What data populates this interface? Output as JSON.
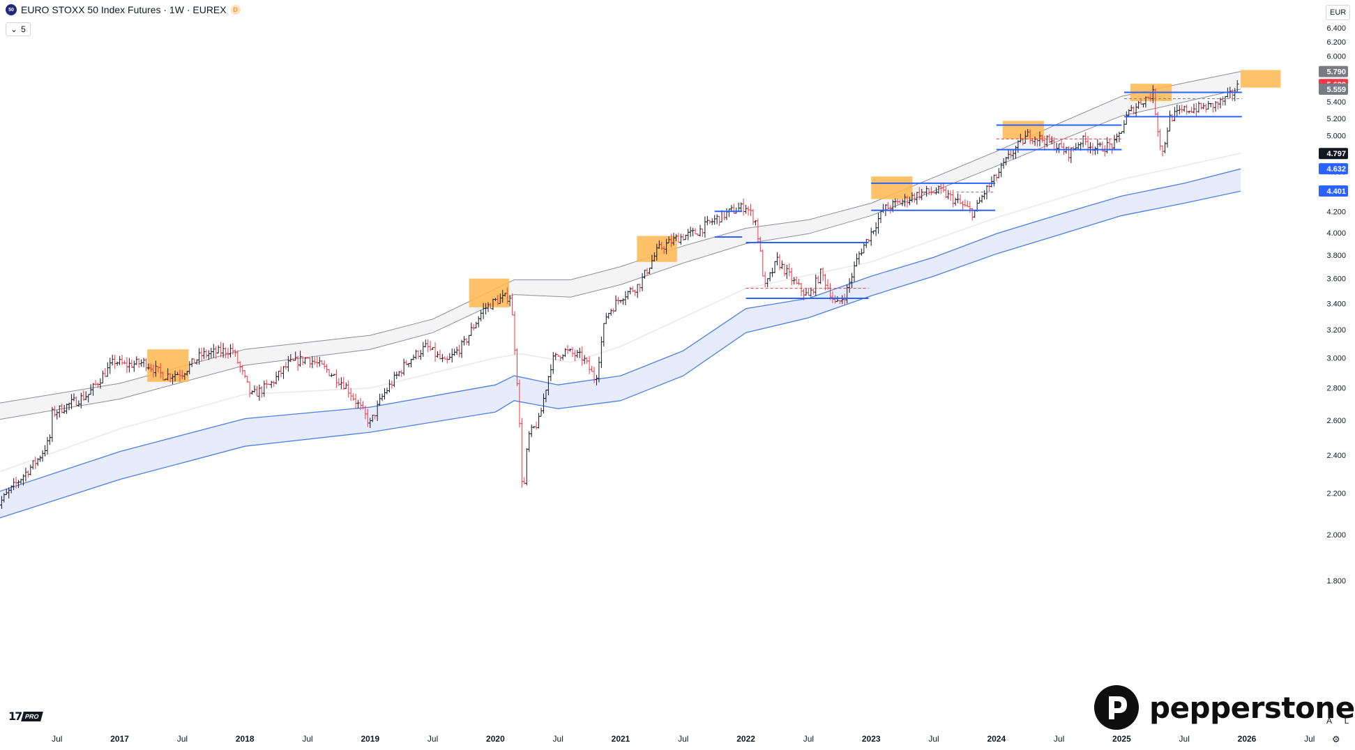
{
  "header": {
    "symbol_badge": "50",
    "title": "EURO STOXX 50 Index Futures · 1W · EUREX",
    "d_badge": "D",
    "indicator_toggle": "5",
    "currency": "EUR"
  },
  "footer": {
    "tv_logo": "17",
    "tv_logo_suffix": "PRO",
    "brand": "pepperstone",
    "scale_auto_button": "A",
    "scale_log_button": "L",
    "settings_icon": "gear-icon"
  },
  "colors": {
    "up": "#131722",
    "down": "#f23645",
    "level_line": "#2962ff",
    "highlight_box": "#ffb74d",
    "band_fill": "#dde6fb",
    "band_line": "#4a7de8"
  },
  "chart_data": {
    "type": "line",
    "title": "",
    "xlabel": "",
    "ylabel": "",
    "y_scale": "log",
    "ylim": [
      1.72,
      6.6
    ],
    "xlim": [
      2016.0,
      2026.55
    ],
    "grid": false,
    "y_ticks": [
      "6.400",
      "6.200",
      "6.000",
      "5.800",
      "5.600",
      "5.400",
      "5.200",
      "5.000",
      "4.800",
      "4.600",
      "4.400",
      "4.200",
      "4.000",
      "3.800",
      "3.600",
      "3.400",
      "3.200",
      "3.000",
      "2.800",
      "2.600",
      "2.400",
      "2.200",
      "2.000",
      "1.800"
    ],
    "x_ticks": [
      {
        "label": "Jul",
        "t": 2016.5
      },
      {
        "label": "2017",
        "t": 2017.0
      },
      {
        "label": "Jul",
        "t": 2017.5
      },
      {
        "label": "2018",
        "t": 2018.0
      },
      {
        "label": "Jul",
        "t": 2018.5
      },
      {
        "label": "2019",
        "t": 2019.0
      },
      {
        "label": "Jul",
        "t": 2019.5
      },
      {
        "label": "2020",
        "t": 2020.0
      },
      {
        "label": "Jul",
        "t": 2020.5
      },
      {
        "label": "2021",
        "t": 2021.0
      },
      {
        "label": "Jul",
        "t": 2021.5
      },
      {
        "label": "2022",
        "t": 2022.0
      },
      {
        "label": "Jul",
        "t": 2022.5
      },
      {
        "label": "2023",
        "t": 2023.0
      },
      {
        "label": "Jul",
        "t": 2023.5
      },
      {
        "label": "2024",
        "t": 2024.0
      },
      {
        "label": "Jul",
        "t": 2024.5
      },
      {
        "label": "2025",
        "t": 2025.0
      },
      {
        "label": "Jul",
        "t": 2025.5
      },
      {
        "label": "2026",
        "t": 2026.0
      },
      {
        "label": "Jul",
        "t": 2026.5
      }
    ],
    "price_path": [
      [
        2016.0,
        2.12
      ],
      [
        2016.35,
        2.38
      ],
      [
        2016.44,
        2.48
      ],
      [
        2016.46,
        2.64
      ],
      [
        2016.75,
        2.76
      ],
      [
        2016.96,
        2.98
      ],
      [
        2017.04,
        2.95
      ],
      [
        2017.2,
        2.97
      ],
      [
        2017.35,
        2.88
      ],
      [
        2017.5,
        2.9
      ],
      [
        2017.65,
        3.02
      ],
      [
        2017.9,
        3.06
      ],
      [
        2018.05,
        2.75
      ],
      [
        2018.2,
        2.82
      ],
      [
        2018.35,
        2.96
      ],
      [
        2018.5,
        3.0
      ],
      [
        2018.65,
        2.92
      ],
      [
        2018.8,
        2.82
      ],
      [
        2018.95,
        2.64
      ],
      [
        2019.0,
        2.58
      ],
      [
        2019.1,
        2.75
      ],
      [
        2019.3,
        2.98
      ],
      [
        2019.45,
        3.08
      ],
      [
        2019.6,
        2.96
      ],
      [
        2019.75,
        3.1
      ],
      [
        2019.9,
        3.35
      ],
      [
        2020.0,
        3.42
      ],
      [
        2020.12,
        3.46
      ],
      [
        2020.17,
        2.9
      ],
      [
        2020.22,
        2.15
      ],
      [
        2020.26,
        2.5
      ],
      [
        2020.35,
        2.6
      ],
      [
        2020.45,
        2.98
      ],
      [
        2020.55,
        3.05
      ],
      [
        2020.7,
        3.0
      ],
      [
        2020.8,
        2.85
      ],
      [
        2020.88,
        3.3
      ],
      [
        2021.0,
        3.45
      ],
      [
        2021.15,
        3.55
      ],
      [
        2021.3,
        3.85
      ],
      [
        2021.45,
        3.95
      ],
      [
        2021.6,
        4.0
      ],
      [
        2021.75,
        4.12
      ],
      [
        2021.88,
        4.2
      ],
      [
        2022.0,
        4.25
      ],
      [
        2022.08,
        4.1
      ],
      [
        2022.15,
        3.52
      ],
      [
        2022.25,
        3.75
      ],
      [
        2022.4,
        3.55
      ],
      [
        2022.5,
        3.45
      ],
      [
        2022.6,
        3.65
      ],
      [
        2022.72,
        3.38
      ],
      [
        2022.8,
        3.48
      ],
      [
        2022.9,
        3.8
      ],
      [
        2023.0,
        4.0
      ],
      [
        2023.1,
        4.22
      ],
      [
        2023.25,
        4.3
      ],
      [
        2023.4,
        4.38
      ],
      [
        2023.55,
        4.4
      ],
      [
        2023.68,
        4.3
      ],
      [
        2023.82,
        4.18
      ],
      [
        2023.9,
        4.38
      ],
      [
        2024.0,
        4.55
      ],
      [
        2024.12,
        4.8
      ],
      [
        2024.25,
        5.0
      ],
      [
        2024.38,
        4.95
      ],
      [
        2024.48,
        4.88
      ],
      [
        2024.58,
        4.8
      ],
      [
        2024.68,
        4.95
      ],
      [
        2024.8,
        4.85
      ],
      [
        2024.95,
        4.9
      ],
      [
        2025.05,
        5.25
      ],
      [
        2025.15,
        5.4
      ],
      [
        2025.25,
        5.5
      ],
      [
        2025.3,
        4.95
      ],
      [
        2025.33,
        4.8
      ],
      [
        2025.38,
        5.2
      ],
      [
        2025.5,
        5.3
      ],
      [
        2025.6,
        5.32
      ],
      [
        2025.72,
        5.35
      ],
      [
        2025.8,
        5.4
      ],
      [
        2025.88,
        5.5
      ],
      [
        2025.94,
        5.62
      ]
    ],
    "envelope_upper_path": [
      [
        2016.0,
        2.7
      ],
      [
        2017.0,
        2.83
      ],
      [
        2018.0,
        3.06
      ],
      [
        2019.0,
        3.16
      ],
      [
        2019.5,
        3.28
      ],
      [
        2020.15,
        3.59
      ],
      [
        2020.6,
        3.59
      ],
      [
        2021.0,
        3.7
      ],
      [
        2021.5,
        3.88
      ],
      [
        2022.0,
        4.04
      ],
      [
        2022.5,
        4.12
      ],
      [
        2023.0,
        4.28
      ],
      [
        2023.5,
        4.54
      ],
      [
        2024.0,
        4.82
      ],
      [
        2024.5,
        5.14
      ],
      [
        2025.0,
        5.47
      ],
      [
        2025.5,
        5.64
      ],
      [
        2025.95,
        5.79
      ]
    ],
    "envelope_lower_path": [
      [
        2016.0,
        2.6
      ],
      [
        2017.0,
        2.73
      ],
      [
        2018.0,
        2.95
      ],
      [
        2019.0,
        3.06
      ],
      [
        2019.5,
        3.18
      ],
      [
        2020.15,
        3.47
      ],
      [
        2020.6,
        3.45
      ],
      [
        2021.0,
        3.55
      ],
      [
        2021.5,
        3.73
      ],
      [
        2022.0,
        3.9
      ],
      [
        2022.5,
        3.99
      ],
      [
        2023.0,
        4.16
      ],
      [
        2023.5,
        4.4
      ],
      [
        2024.0,
        4.66
      ],
      [
        2024.5,
        4.94
      ],
      [
        2025.0,
        5.23
      ],
      [
        2025.5,
        5.4
      ],
      [
        2025.95,
        5.56
      ]
    ],
    "ma_faint_path": [
      [
        2016.0,
        2.3
      ],
      [
        2017.0,
        2.55
      ],
      [
        2018.0,
        2.76
      ],
      [
        2019.0,
        2.8
      ],
      [
        2020.0,
        3.0
      ],
      [
        2020.2,
        3.03
      ],
      [
        2020.6,
        2.97
      ],
      [
        2021.0,
        3.08
      ],
      [
        2022.0,
        3.52
      ],
      [
        2023.0,
        3.74
      ],
      [
        2024.0,
        4.14
      ],
      [
        2025.0,
        4.52
      ],
      [
        2025.95,
        4.8
      ]
    ],
    "band_upper_path": [
      [
        2016.0,
        2.2
      ],
      [
        2017.0,
        2.42
      ],
      [
        2018.0,
        2.61
      ],
      [
        2019.0,
        2.68
      ],
      [
        2020.0,
        2.82
      ],
      [
        2020.15,
        2.88
      ],
      [
        2020.5,
        2.82
      ],
      [
        2021.0,
        2.88
      ],
      [
        2021.5,
        3.05
      ],
      [
        2022.0,
        3.36
      ],
      [
        2022.5,
        3.44
      ],
      [
        2023.0,
        3.62
      ],
      [
        2023.5,
        3.78
      ],
      [
        2024.0,
        3.99
      ],
      [
        2024.5,
        4.17
      ],
      [
        2025.0,
        4.35
      ],
      [
        2025.5,
        4.48
      ],
      [
        2025.95,
        4.63
      ]
    ],
    "band_lower_path": [
      [
        2016.0,
        2.07
      ],
      [
        2017.0,
        2.27
      ],
      [
        2018.0,
        2.45
      ],
      [
        2019.0,
        2.53
      ],
      [
        2020.0,
        2.65
      ],
      [
        2020.15,
        2.72
      ],
      [
        2020.5,
        2.67
      ],
      [
        2021.0,
        2.72
      ],
      [
        2021.5,
        2.88
      ],
      [
        2022.0,
        3.18
      ],
      [
        2022.5,
        3.29
      ],
      [
        2023.0,
        3.46
      ],
      [
        2023.5,
        3.62
      ],
      [
        2024.0,
        3.81
      ],
      [
        2024.5,
        3.98
      ],
      [
        2025.0,
        4.16
      ],
      [
        2025.5,
        4.28
      ],
      [
        2025.95,
        4.4
      ]
    ],
    "highlight_boxes": [
      {
        "x0": 2017.22,
        "x1": 2017.55,
        "y0": 2.84,
        "y1": 3.06
      },
      {
        "x0": 2019.79,
        "x1": 2020.11,
        "y0": 3.37,
        "y1": 3.6
      },
      {
        "x0": 2021.13,
        "x1": 2021.45,
        "y0": 3.74,
        "y1": 3.97
      },
      {
        "x0": 2023.0,
        "x1": 2023.33,
        "y0": 4.32,
        "y1": 4.55
      },
      {
        "x0": 2024.05,
        "x1": 2024.38,
        "y0": 4.96,
        "y1": 5.17
      },
      {
        "x0": 2025.07,
        "x1": 2025.4,
        "y0": 5.41,
        "y1": 5.63
      },
      {
        "x0": 2025.95,
        "x1": 2026.27,
        "y0": 5.58,
        "y1": 5.81
      }
    ],
    "horizontal_levels": [
      {
        "x0": 2021.75,
        "x1": 2021.97,
        "y": 4.2
      },
      {
        "x0": 2021.75,
        "x1": 2021.97,
        "y": 3.96
      },
      {
        "x0": 2022.0,
        "x1": 2022.98,
        "y": 3.91
      },
      {
        "x0": 2022.0,
        "x1": 2022.98,
        "y": 3.44
      },
      {
        "x0": 2023.0,
        "x1": 2023.99,
        "y": 4.48
      },
      {
        "x0": 2023.0,
        "x1": 2023.99,
        "y": 4.21
      },
      {
        "x0": 2024.0,
        "x1": 2025.0,
        "y": 5.12
      },
      {
        "x0": 2024.0,
        "x1": 2025.0,
        "y": 4.84
      },
      {
        "x0": 2025.02,
        "x1": 2025.96,
        "y": 5.52
      },
      {
        "x0": 2025.02,
        "x1": 2025.96,
        "y": 5.22
      }
    ],
    "dashed_levels": [
      {
        "x0": 2022.0,
        "x1": 2022.98,
        "y": 3.52,
        "color": "#f23645"
      },
      {
        "x0": 2023.68,
        "x1": 2023.99,
        "y": 4.39,
        "color": "#787b86"
      },
      {
        "x0": 2024.0,
        "x1": 2025.0,
        "y": 4.96,
        "color": "#f23645"
      },
      {
        "x0": 2025.02,
        "x1": 2025.96,
        "y": 5.44,
        "color": "#787b86"
      }
    ],
    "price_labels": [
      {
        "value": "5.790",
        "y": 5.79,
        "bg": "#787b86",
        "fg": "#ffffff"
      },
      {
        "value": "5.620",
        "y": 5.62,
        "bg": "#f23645",
        "fg": "#ffffff"
      },
      {
        "value": "5.559",
        "y": 5.559,
        "bg": "#787b86",
        "fg": "#ffffff"
      },
      {
        "value": "4.797",
        "y": 4.797,
        "bg": "#131722",
        "fg": "#ffffff"
      },
      {
        "value": "4.632",
        "y": 4.632,
        "bg": "#2962ff",
        "fg": "#ffffff"
      },
      {
        "value": "4.401",
        "y": 4.401,
        "bg": "#2962ff",
        "fg": "#ffffff"
      }
    ]
  }
}
